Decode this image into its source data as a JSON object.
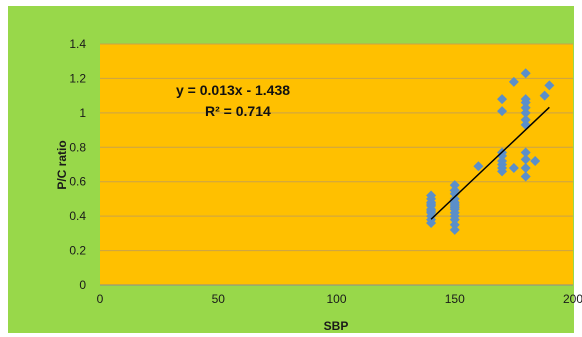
{
  "chart_data": {
    "type": "scatter",
    "title": "",
    "xlabel": "SBP",
    "ylabel": "P/C ratio",
    "xlim": [
      0,
      200
    ],
    "ylim": [
      0,
      1.4
    ],
    "x_ticks": [
      0,
      50,
      100,
      150,
      200
    ],
    "y_ticks": [
      0,
      0.2,
      0.4,
      0.6,
      0.8,
      1,
      1.2,
      1.4
    ],
    "x_tick_labels": [
      "0",
      "50",
      "100",
      "150",
      "200"
    ],
    "y_tick_labels": [
      "0",
      "0.2",
      "0.4",
      "0.6",
      "0.8",
      "1",
      "1.2",
      "1.4"
    ],
    "grid": true,
    "legend": "none",
    "colors": {
      "page_background": "#98D84A",
      "plot_background": "#FFC000",
      "gridline": "#C9A24A",
      "marker": "#5B8FC9",
      "trendline": "#000000"
    },
    "series": [
      {
        "marker": "diamond",
        "x": [
          140,
          140,
          140,
          140,
          140,
          140,
          140,
          140,
          140,
          140,
          140,
          150,
          150,
          150,
          150,
          150,
          150,
          150,
          150,
          150,
          150,
          150,
          150,
          150,
          150,
          150,
          160,
          170,
          170,
          170,
          170,
          170,
          170,
          170,
          170,
          175,
          175,
          180,
          180,
          180,
          180,
          180,
          180,
          180,
          180,
          180,
          180,
          180,
          184,
          188,
          190
        ],
        "y": [
          0.36,
          0.38,
          0.4,
          0.42,
          0.43,
          0.44,
          0.46,
          0.47,
          0.48,
          0.5,
          0.52,
          0.32,
          0.35,
          0.38,
          0.4,
          0.42,
          0.44,
          0.45,
          0.46,
          0.47,
          0.48,
          0.5,
          0.53,
          0.55,
          0.58,
          0.55,
          0.69,
          0.66,
          0.68,
          0.7,
          0.72,
          0.75,
          0.77,
          1.01,
          1.08,
          1.18,
          0.68,
          0.63,
          0.68,
          0.73,
          0.77,
          0.93,
          0.96,
          1.0,
          1.03,
          1.06,
          1.08,
          1.23,
          0.72,
          1.1,
          1.16
        ]
      }
    ],
    "trendline": {
      "type": "linear",
      "slope": 0.013,
      "intercept": -1.438,
      "x_range": [
        140,
        190
      ],
      "equation": "y = 0.013x - 1.438",
      "r_squared": "R² = 0.714"
    }
  }
}
